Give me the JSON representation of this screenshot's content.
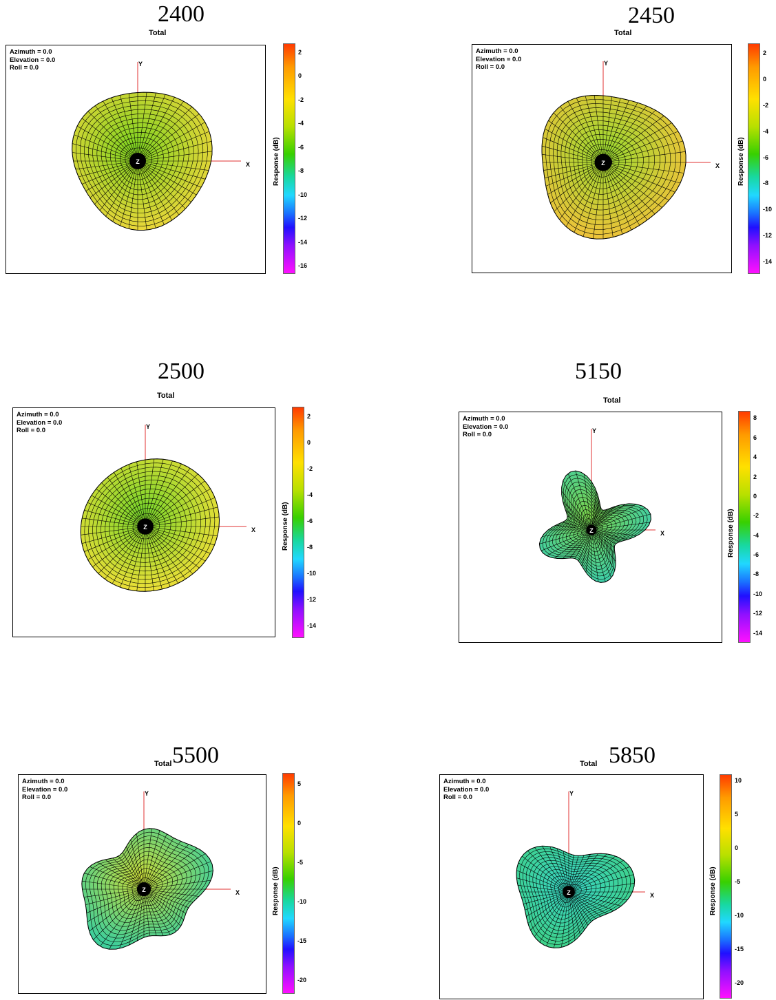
{
  "chart_data": [
    {
      "type": "3d-radiation-pattern",
      "frequency": "2400",
      "title": "Total",
      "orientation": [
        "Azimuth = 0.0",
        "Elevation = 0.0",
        "Roll = 0.0"
      ],
      "axes": [
        "Y",
        "X",
        "Z"
      ],
      "colorbar_label": "Response  (dB)",
      "colorbar_ticks": [
        "2",
        "0",
        "-2",
        "-4",
        "-6",
        "-8",
        "-10",
        "-12",
        "-14",
        "-16"
      ],
      "colorbar_range": [
        -16.5,
        2.8
      ],
      "surface_color": "#e9d63a",
      "accent_color": "#7ed321"
    },
    {
      "type": "3d-radiation-pattern",
      "frequency": "2450",
      "title": "Total",
      "orientation": [
        "Azimuth = 0.0",
        "Elevation = 0.0",
        "Roll = 0.0"
      ],
      "axes": [
        "Y",
        "X",
        "Z"
      ],
      "colorbar_label": "Response  (dB)",
      "colorbar_ticks": [
        "2",
        "0",
        "-2",
        "-4",
        "-6",
        "-8",
        "-10",
        "-12",
        "-14"
      ],
      "colorbar_range": [
        -14.8,
        2.8
      ],
      "surface_color": "#eec33a",
      "accent_color": "#9ad930"
    },
    {
      "type": "3d-radiation-pattern",
      "frequency": "2500",
      "title": "Total",
      "orientation": [
        "Azimuth = 0.0",
        "Elevation = 0.0",
        "Roll = 0.0"
      ],
      "axes": [
        "Y",
        "X",
        "Z"
      ],
      "colorbar_label": "Response  (dB)",
      "colorbar_ticks": [
        "2",
        "0",
        "-2",
        "-4",
        "-6",
        "-8",
        "-10",
        "-12",
        "-14"
      ],
      "colorbar_range": [
        -14.8,
        2.8
      ],
      "surface_color": "#ecdf38",
      "accent_color": "#76d42b"
    },
    {
      "type": "3d-radiation-pattern",
      "frequency": "5150",
      "title": "Total",
      "orientation": [
        "Azimuth = 0.0",
        "Elevation = 0.0",
        "Roll = 0.0"
      ],
      "axes": [
        "Y",
        "X",
        "Z"
      ],
      "colorbar_label": "Response  (dB)",
      "colorbar_ticks": [
        "8",
        "6",
        "4",
        "2",
        "0",
        "-2",
        "-4",
        "-6",
        "-8",
        "-10",
        "-12",
        "-14"
      ],
      "colorbar_range": [
        -14.8,
        8.8
      ],
      "surface_color": "#3fcfa8",
      "accent_color": "#7ad24a"
    },
    {
      "type": "3d-radiation-pattern",
      "frequency": "5500",
      "title": "Total",
      "orientation": [
        "Azimuth = 0.0",
        "Elevation = 0.0",
        "Roll = 0.0"
      ],
      "axes": [
        "Y",
        "X",
        "Z"
      ],
      "colorbar_label": "Response  (dB)",
      "colorbar_ticks": [
        "5",
        "0",
        "-5",
        "-10",
        "-15",
        "-20"
      ],
      "colorbar_range": [
        -21.5,
        6.5
      ],
      "surface_color": "#3fcf9a",
      "accent_color": "#c9dc3a"
    },
    {
      "type": "3d-radiation-pattern",
      "frequency": "5850",
      "title": "Total",
      "orientation": [
        "Azimuth = 0.0",
        "Elevation = 0.0",
        "Roll = 0.0"
      ],
      "axes": [
        "Y",
        "X",
        "Z"
      ],
      "colorbar_label": "Response  (dB)",
      "colorbar_ticks": [
        "10",
        "5",
        "0",
        "-5",
        "-10",
        "-15",
        "-20"
      ],
      "colorbar_range": [
        -22,
        11
      ],
      "surface_color": "#3fd28a",
      "accent_color": "#38d4c4"
    }
  ]
}
